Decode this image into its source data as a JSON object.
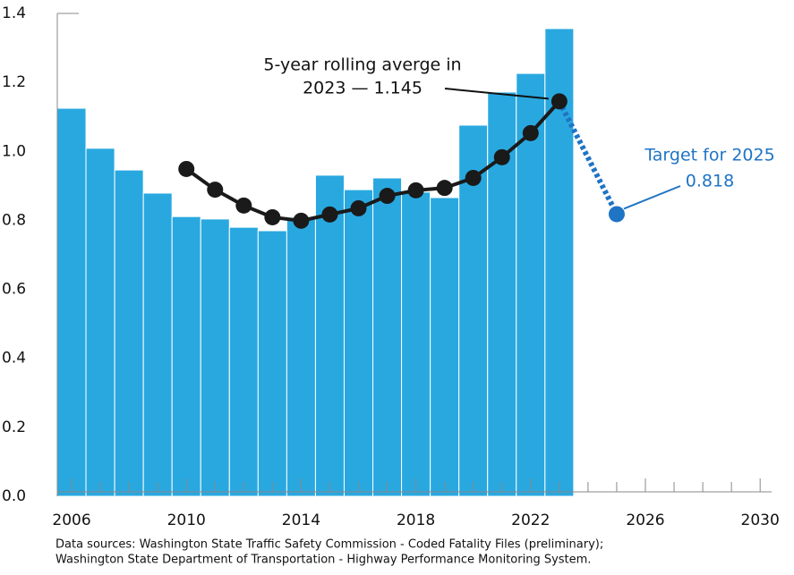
{
  "chart_data": {
    "type": "bar-line",
    "bars": {
      "color": "#29a8e0",
      "x": [
        2006,
        2007,
        2008,
        2009,
        2010,
        2011,
        2012,
        2013,
        2014,
        2015,
        2016,
        2017,
        2018,
        2019,
        2020,
        2021,
        2022,
        2023
      ],
      "values": [
        1.125,
        1.009,
        0.946,
        0.879,
        0.811,
        0.804,
        0.78,
        0.77,
        0.809,
        0.931,
        0.889,
        0.923,
        0.882,
        0.866,
        1.076,
        1.172,
        1.226,
        1.356
      ]
    },
    "rolling_average": {
      "color": "#1a1a1a",
      "x": [
        2010,
        2011,
        2012,
        2013,
        2014,
        2015,
        2016,
        2017,
        2018,
        2019,
        2020,
        2021,
        2022,
        2023
      ],
      "values": [
        0.949,
        0.889,
        0.843,
        0.809,
        0.799,
        0.817,
        0.835,
        0.871,
        0.887,
        0.894,
        0.923,
        0.983,
        1.053,
        1.145
      ]
    },
    "target": {
      "color": "#1f74c4",
      "x": 2025,
      "value": 0.818,
      "value_label": "0.818",
      "text": "Target for 2025"
    },
    "annotation": [
      "5-year rolling averge in",
      "2023 — 1.145"
    ],
    "xlim": [
      2005.5,
      2030.4
    ],
    "xticks": [
      2006,
      2010,
      2014,
      2018,
      2022,
      2026,
      2030
    ],
    "xminor_ticks": [
      2007,
      2008,
      2009,
      2011,
      2012,
      2013,
      2015,
      2016,
      2017,
      2019,
      2020,
      2021,
      2023,
      2024,
      2025,
      2027,
      2028,
      2029
    ],
    "ylim": [
      0,
      1.4
    ],
    "yticks": [
      {
        "value": 0,
        "label": "0.0"
      },
      0.2,
      0.4,
      0.6,
      0.8,
      {
        "value": 1,
        "label": "1.0"
      },
      1.2,
      1.4
    ],
    "footnote": [
      "Data sources: Washington State Traffic Safety Commission - Coded Fatality Files (preliminary);",
      "Washington State Department of Transportation - Highway Performance Monitoring System."
    ]
  }
}
